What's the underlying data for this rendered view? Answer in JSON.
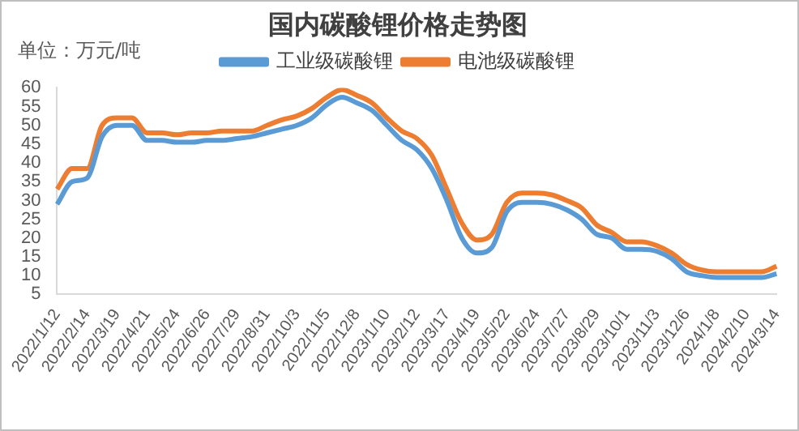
{
  "chart_data": {
    "type": "line",
    "title": "国内碳酸锂价格走势图",
    "ylabel": "单位：万元/吨",
    "categories": [
      "2022/1/12",
      null,
      "2022/2/14",
      null,
      "2022/3/19",
      null,
      "2022/4/21",
      null,
      "2022/5/24",
      null,
      "2022/6/26",
      null,
      "2022/7/29",
      null,
      "2022/8/31",
      null,
      "2022/10/3",
      null,
      "2022/11/5",
      null,
      "2022/12/8",
      null,
      "2023/1/10",
      null,
      "2023/2/12",
      null,
      "2023/3/17",
      null,
      "2023/4/19",
      null,
      "2023/5/22",
      null,
      "2023/6/24",
      null,
      "2023/7/27",
      null,
      "2023/8/29",
      null,
      "2023/10/1",
      null,
      "2023/11/3",
      null,
      "2023/12/6",
      null,
      "2024/1/8",
      null,
      "2024/2/10",
      null,
      "2024/3/14"
    ],
    "series": [
      {
        "name": "工业级碳酸锂",
        "color": "#5b9bd5",
        "values": [
          29,
          35,
          36,
          47,
          50,
          50,
          46,
          46,
          45.5,
          45.5,
          46,
          46,
          46.5,
          47,
          48,
          49,
          50,
          52,
          55.5,
          57.5,
          56,
          54,
          50,
          46,
          43.5,
          38.5,
          30,
          20,
          16,
          17.5,
          27,
          29.5,
          29.5,
          29,
          27.5,
          25,
          21,
          20,
          17,
          17,
          16.5,
          14.5,
          11,
          10,
          9.5,
          9.5,
          9.5,
          9.5,
          10.5
        ]
      },
      {
        "name": "电池级碳酸锂",
        "color": "#ed7d31",
        "values": [
          33,
          38.5,
          38.5,
          50,
          52,
          52,
          48,
          48,
          47.5,
          48,
          48,
          48.5,
          48.5,
          48.5,
          50,
          51.5,
          52.5,
          54.5,
          57.5,
          59.5,
          58,
          56,
          52,
          48.5,
          46.5,
          42,
          33,
          24,
          19.5,
          21,
          29.5,
          32,
          32,
          31.5,
          30,
          28,
          23.5,
          21.5,
          19,
          19,
          18,
          16,
          13,
          11.5,
          11,
          11,
          11,
          11,
          12.5
        ]
      }
    ],
    "ylim": [
      5,
      60
    ],
    "yticks": [
      5,
      10,
      15,
      20,
      25,
      30,
      35,
      40,
      45,
      50,
      55,
      60
    ],
    "grid": false,
    "legend": "top",
    "marker": "none",
    "line_style": "solid"
  }
}
